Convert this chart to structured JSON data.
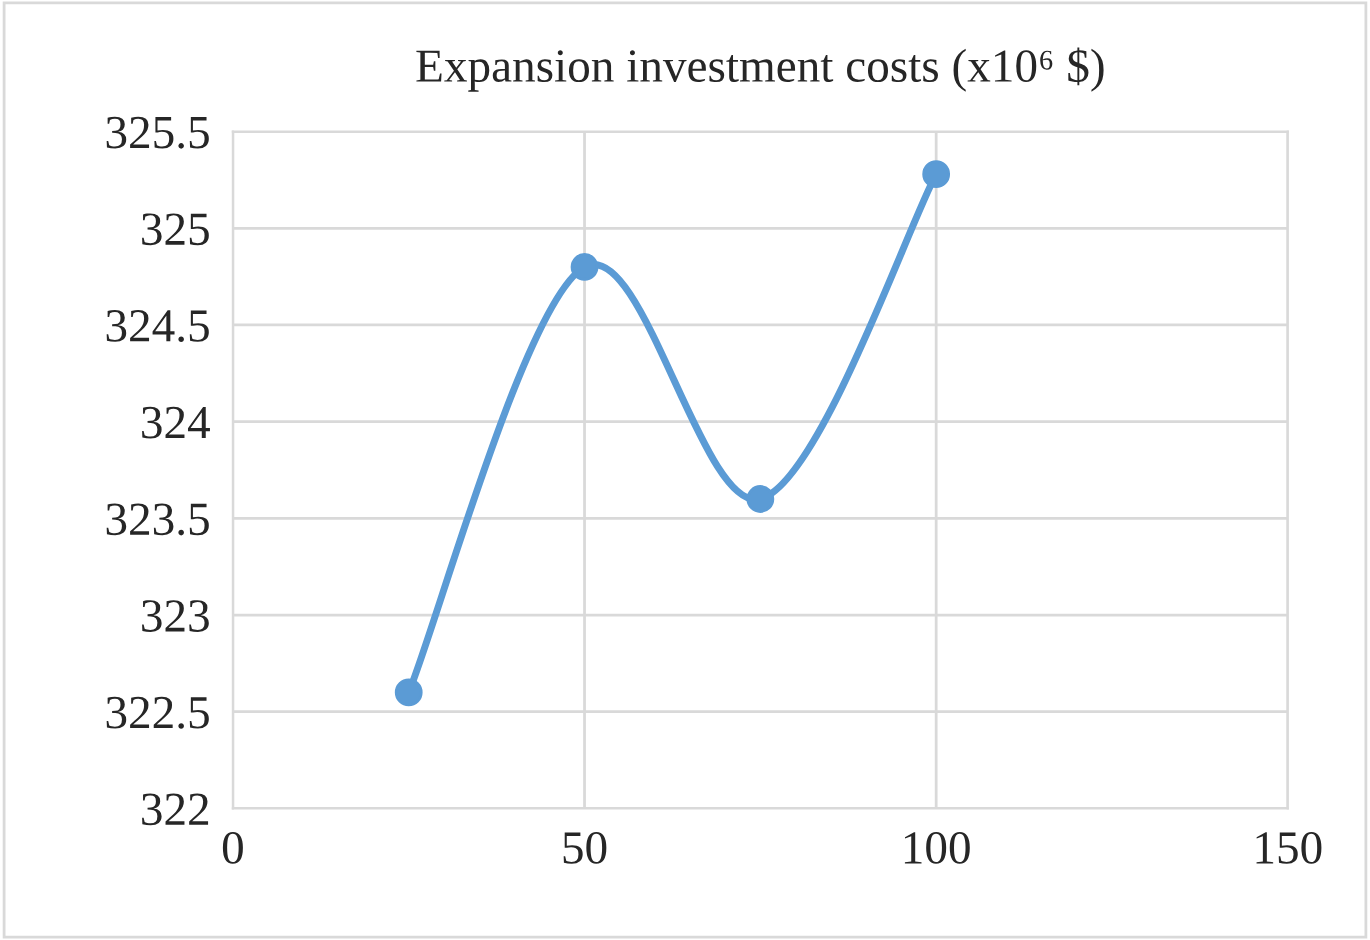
{
  "chart_data": {
    "type": "line",
    "title": "Expansion investment costs (x10⁶ $)",
    "x": [
      25,
      50,
      75,
      100
    ],
    "series": [
      {
        "color": "#5b9bd5",
        "values": [
          322.6,
          324.8,
          323.6,
          325.28
        ]
      }
    ],
    "xlim": [
      0,
      150
    ],
    "xticks": [
      0,
      50,
      100,
      150
    ],
    "ylim": [
      322,
      325.5
    ],
    "yticks": [
      322,
      322.5,
      323,
      323.5,
      324,
      324.5,
      325,
      325.5
    ],
    "grid": true,
    "marker": "circle",
    "line_style": "solid",
    "legend": false
  }
}
